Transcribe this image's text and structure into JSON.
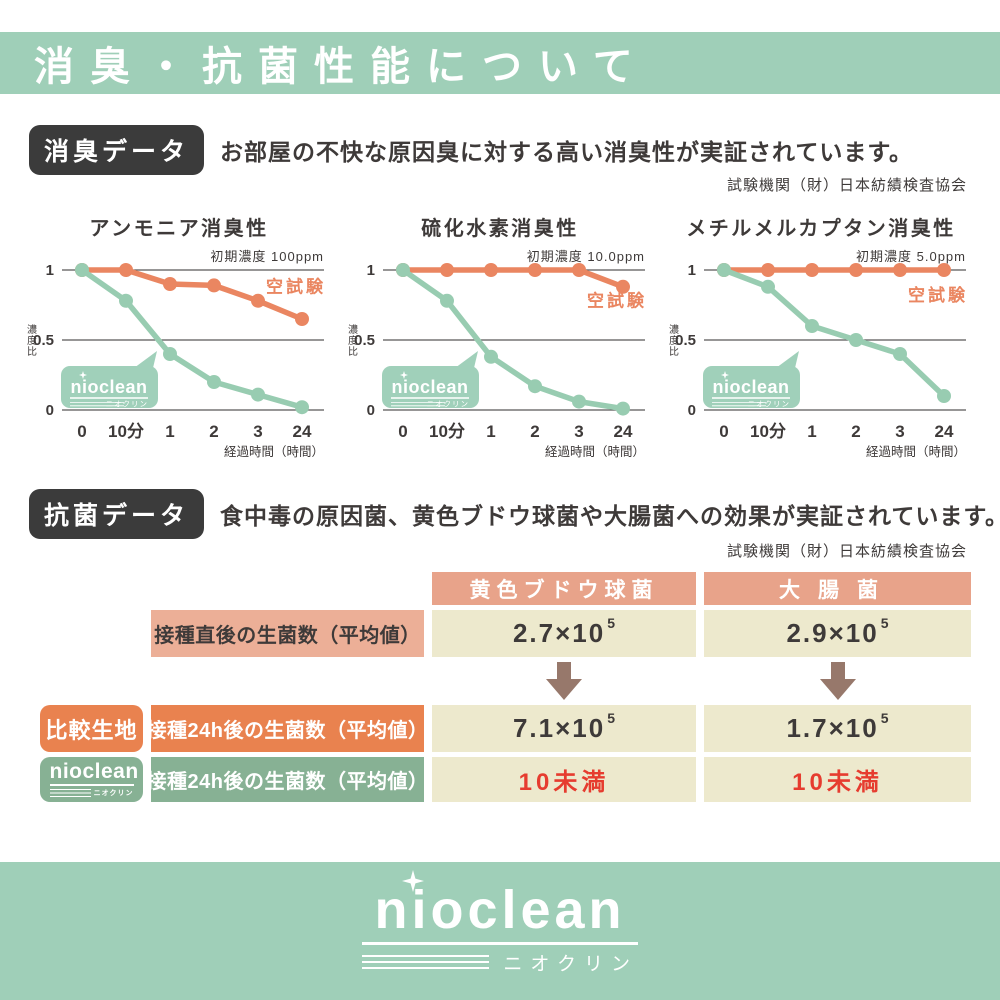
{
  "header": {
    "title": "消臭・抗菌性能について"
  },
  "deodorant": {
    "badge": "消臭データ",
    "description": "お部屋の不快な原因臭に対する高い消臭性が実証されています。",
    "agency": "試験機関（財）日本紡績検査協会"
  },
  "antibacterial": {
    "badge": "抗菌データ",
    "description": "食中毒の原因菌、黄色ブドウ球菌や大腸菌への効果が実証されています。",
    "agency": "試験機関（財）日本紡績検査協会"
  },
  "footer": {
    "brand": "nioclean",
    "sub": "ニオクリン"
  },
  "colors": {
    "banner_green": "#9fcfb8",
    "line_orange": "#ea8661",
    "line_green": "#98ccb1",
    "badge_dark": "#3b3b3b",
    "table_header_salmon": "#e8a38a",
    "row_label_salmon": "#ecaf97",
    "row_orange": "#e9824f",
    "row_green": "#87b194",
    "cell_cream": "#ede9cd",
    "result_red": "#e63c2f",
    "arrow_brown": "#97786b",
    "text_dark": "#3e3a39"
  },
  "chart_data": [
    {
      "type": "line",
      "title": "アンモニア消臭性",
      "annotation": "初期濃度 100ppm",
      "x_ticks": [
        "0",
        "10分",
        "1",
        "2",
        "3",
        "24"
      ],
      "xlabel": "経過時間（時間）",
      "y_ticks": [
        "1",
        "0.5",
        "0"
      ],
      "ylabel": "濃度比",
      "ylim": [
        0,
        1
      ],
      "grid": true,
      "legend": "空試験",
      "legend_y": 0.84,
      "series": [
        {
          "name": "空試験",
          "color": "#ea8661",
          "values": [
            1,
            1,
            0.9,
            0.89,
            0.78,
            0.65
          ]
        },
        {
          "name": "nioclean",
          "color": "#98ccb1",
          "values": [
            1,
            0.78,
            0.4,
            0.2,
            0.11,
            0.02
          ]
        }
      ],
      "bubble": {
        "brand": "nioclean",
        "sub": "ニオクリン"
      }
    },
    {
      "type": "line",
      "title": "硫化水素消臭性",
      "annotation": "初期濃度 10.0ppm",
      "x_ticks": [
        "0",
        "10分",
        "1",
        "2",
        "3",
        "24"
      ],
      "xlabel": "経過時間（時間）",
      "y_ticks": [
        "1",
        "0.5",
        "0"
      ],
      "ylabel": "濃度比",
      "ylim": [
        0,
        1
      ],
      "grid": true,
      "legend": "空試験",
      "legend_y": 0.74,
      "series": [
        {
          "name": "空試験",
          "color": "#ea8661",
          "values": [
            1,
            1,
            1,
            1,
            1,
            0.88
          ]
        },
        {
          "name": "nioclean",
          "color": "#98ccb1",
          "values": [
            1,
            0.78,
            0.38,
            0.17,
            0.06,
            0.01
          ]
        }
      ],
      "bubble": {
        "brand": "nioclean",
        "sub": "ニオクリン"
      }
    },
    {
      "type": "line",
      "title": "メチルメルカプタン消臭性",
      "annotation": "初期濃度 5.0ppm",
      "x_ticks": [
        "0",
        "10分",
        "1",
        "2",
        "3",
        "24"
      ],
      "xlabel": "経過時間（時間）",
      "y_ticks": [
        "1",
        "0.5",
        "0"
      ],
      "ylabel": "濃度比",
      "ylim": [
        0,
        1
      ],
      "grid": true,
      "legend": "空試験",
      "legend_y": 0.78,
      "series": [
        {
          "name": "空試験",
          "color": "#ea8661",
          "values": [
            1,
            1,
            1,
            1,
            1,
            1
          ]
        },
        {
          "name": "nioclean",
          "color": "#98ccb1",
          "values": [
            1,
            0.88,
            0.6,
            0.5,
            0.4,
            0.1
          ]
        }
      ],
      "bubble": {
        "brand": "nioclean",
        "sub": "ニオクリン"
      }
    },
    {
      "type": "table",
      "col_headers": [
        "黄色ブドウ球菌",
        "大腸菌"
      ],
      "rows": [
        {
          "group": "",
          "label": "接種直後の生菌数（平均値）",
          "cells": [
            {
              "base": "2.7×10",
              "exp": "5"
            },
            {
              "base": "2.9×10",
              "exp": "5"
            }
          ]
        },
        {
          "group": "比較生地",
          "label": "接種24h後の生菌数（平均値）",
          "cells": [
            {
              "base": "7.1×10",
              "exp": "5"
            },
            {
              "base": "1.7×10",
              "exp": "5"
            }
          ]
        },
        {
          "group_brand": "nioclean",
          "group_sub": "ニオクリン",
          "label": "接種24h後の生菌数（平均値）",
          "cells": [
            {
              "base": "10未満",
              "exp": ""
            },
            {
              "base": "10未満",
              "exp": ""
            }
          ]
        }
      ]
    }
  ]
}
